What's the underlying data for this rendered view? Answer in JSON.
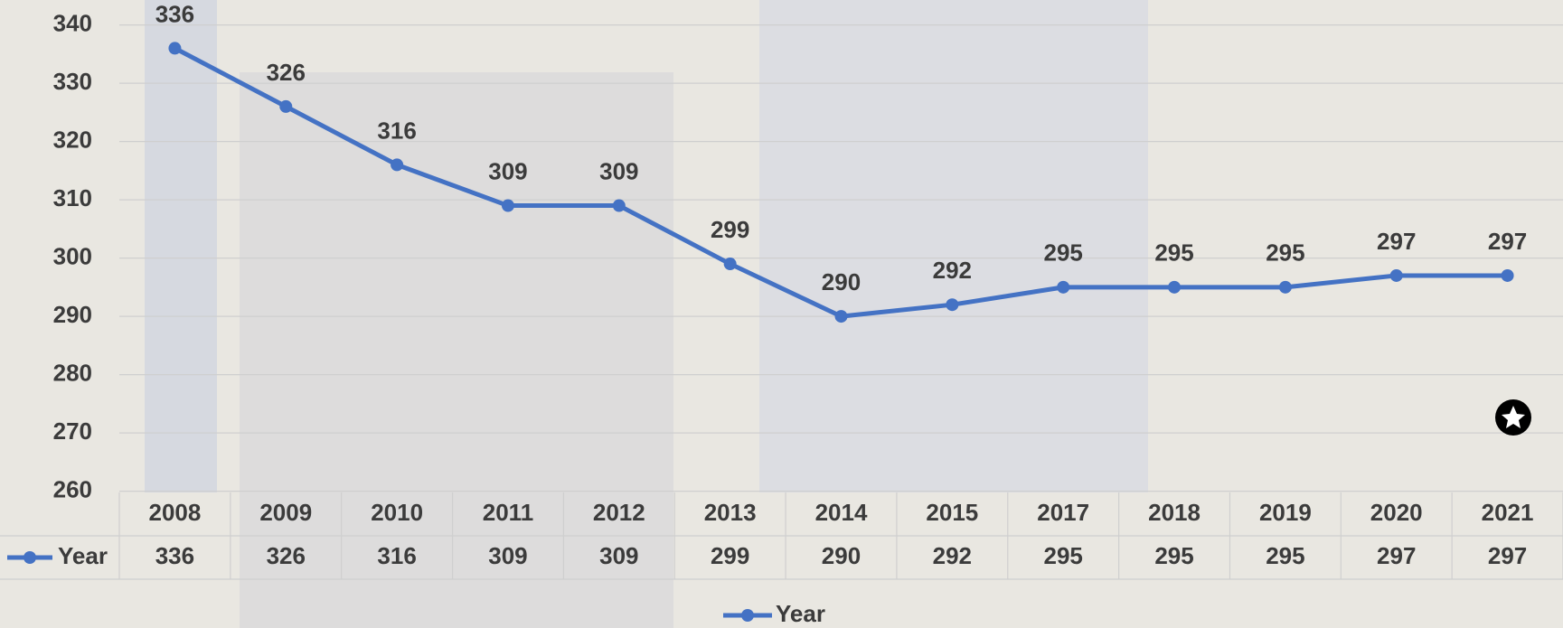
{
  "chart_data": {
    "type": "line",
    "categories": [
      "2008",
      "2009",
      "2010",
      "2011",
      "2012",
      "2013",
      "2014",
      "2015",
      "2017",
      "2018",
      "2019",
      "2020",
      "2021"
    ],
    "series": [
      {
        "name": "Year",
        "color": "#4472c4",
        "values": [
          336,
          326,
          316,
          309,
          309,
          299,
          290,
          292,
          295,
          295,
          295,
          297,
          297
        ]
      }
    ],
    "ylim": [
      260,
      340
    ],
    "yticks": [
      260,
      270,
      280,
      290,
      300,
      310,
      320,
      330,
      340
    ],
    "grid": true
  }
}
